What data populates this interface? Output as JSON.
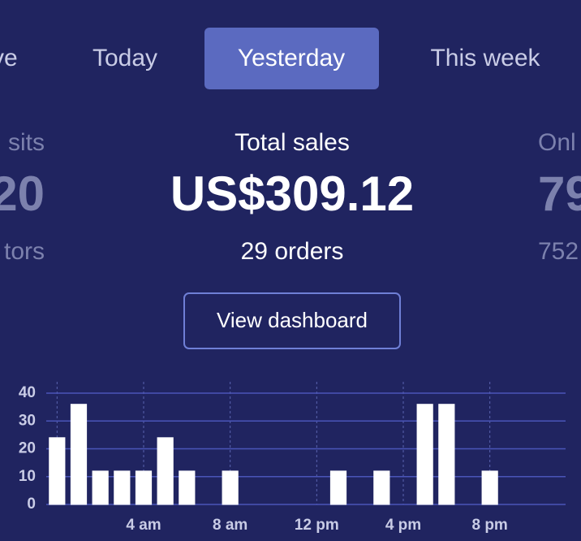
{
  "tabs": [
    "ve",
    "Today",
    "Yesterday",
    "This week"
  ],
  "stats": [
    {
      "title": "sits",
      "value": "20",
      "detail": "tors"
    },
    {
      "title": "Total sales",
      "value": "US$309.12",
      "detail": "29 orders"
    },
    {
      "title": "Onl",
      "value": "79",
      "detail": "752"
    }
  ],
  "button": "View dashboard",
  "chart_data": {
    "type": "bar",
    "categories": [
      null,
      null,
      null,
      null,
      "4 am",
      null,
      null,
      null,
      "8 am",
      null,
      null,
      null,
      "12 pm",
      null,
      null,
      null,
      "4 pm",
      null,
      null,
      null,
      "8 pm",
      null,
      null,
      null
    ],
    "values": [
      24,
      36,
      12,
      12,
      12,
      24,
      12,
      0,
      12,
      0,
      0,
      0,
      0,
      12,
      0,
      12,
      0,
      36,
      36,
      0,
      12,
      0,
      0,
      0
    ],
    "color": "#ffffff",
    "ylim": [
      0,
      40
    ],
    "yticks": [
      0,
      10,
      20,
      30,
      40
    ],
    "grid": true
  }
}
